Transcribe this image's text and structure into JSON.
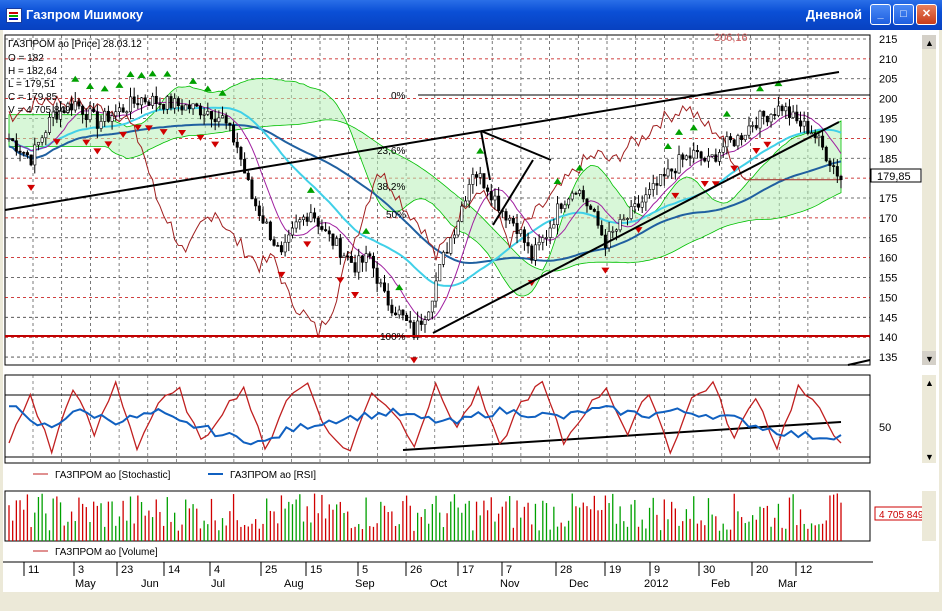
{
  "window": {
    "title": "Газпром Ишимоку",
    "mode": "Дневной",
    "buttons": {
      "minimize": "_",
      "maximize": "□",
      "close": "✕"
    }
  },
  "info": {
    "header": "ГАЗПРОМ ао [Price] 28.03.12",
    "open": "O = 182",
    "high": "H = 182,64",
    "low": "L = 179,51",
    "close": "C = 179,85",
    "volume": "V = 4 705 849"
  },
  "labels": {
    "top_value": "206,16",
    "last_price": "179,85",
    "fib_0": "0%",
    "fib_236": "23,6%",
    "fib_382": "38,2%",
    "fib_50": "50%",
    "fib_100": "100%",
    "osc_mid": "50",
    "vol_last": "4 705 849"
  },
  "legends": {
    "stochastic": "ГАЗПРОМ ао [Stochastic]",
    "rsi": "ГАЗПРОМ ао [RSI]",
    "volume": "ГАЗПРОМ ао [Volume]"
  },
  "chart_data": {
    "type": "line",
    "title": "ГАЗПРОМ ао [Price]",
    "period": "daily",
    "ylim": [
      133,
      216
    ],
    "y_ticks": [
      "215",
      "210",
      "205",
      "200",
      "195",
      "190",
      "185",
      "180",
      "175",
      "170",
      "165",
      "160",
      "155",
      "150",
      "145",
      "140",
      "135"
    ],
    "x_day_ticks": [
      "11",
      "3",
      "23",
      "14",
      "4",
      "25",
      "15",
      "5",
      "26",
      "17",
      "7",
      "28",
      "19",
      "9",
      "30",
      "20",
      "12"
    ],
    "x_month_ticks": [
      "May",
      "Jun",
      "Jul",
      "Aug",
      "Sep",
      "Oct",
      "Nov",
      "Dec",
      "2012",
      "Feb",
      "Mar"
    ],
    "close_path": [
      [
        0,
        190
      ],
      [
        6,
        185
      ],
      [
        12,
        196
      ],
      [
        18,
        199
      ],
      [
        24,
        194
      ],
      [
        30,
        197
      ],
      [
        36,
        200
      ],
      [
        42,
        199
      ],
      [
        48,
        198
      ],
      [
        54,
        197
      ],
      [
        58,
        195
      ],
      [
        62,
        188
      ],
      [
        66,
        175
      ],
      [
        70,
        168
      ],
      [
        74,
        160
      ],
      [
        78,
        168
      ],
      [
        82,
        172
      ],
      [
        86,
        166
      ],
      [
        90,
        162
      ],
      [
        94,
        158
      ],
      [
        98,
        160
      ],
      [
        102,
        150
      ],
      [
        106,
        146
      ],
      [
        110,
        141
      ],
      [
        114,
        148
      ],
      [
        118,
        160
      ],
      [
        122,
        170
      ],
      [
        126,
        182
      ],
      [
        130,
        178
      ],
      [
        134,
        172
      ],
      [
        138,
        168
      ],
      [
        142,
        160
      ],
      [
        146,
        166
      ],
      [
        150,
        174
      ],
      [
        154,
        178
      ],
      [
        158,
        172
      ],
      [
        162,
        164
      ],
      [
        166,
        168
      ],
      [
        170,
        172
      ],
      [
        174,
        176
      ],
      [
        178,
        180
      ],
      [
        182,
        184
      ],
      [
        186,
        186
      ],
      [
        190,
        184
      ],
      [
        194,
        188
      ],
      [
        198,
        190
      ],
      [
        202,
        194
      ],
      [
        206,
        196
      ],
      [
        210,
        198
      ],
      [
        214,
        194
      ],
      [
        218,
        192
      ],
      [
        222,
        186
      ],
      [
        226,
        180
      ]
    ],
    "fibonacci": [
      {
        "level": "0%",
        "value": 200
      },
      {
        "level": "23,6%",
        "value": 186
      },
      {
        "level": "38,2%",
        "value": 178
      },
      {
        "level": "50%",
        "value": 171
      },
      {
        "level": "100%",
        "value": 140
      }
    ],
    "last": {
      "date": "28.03.12",
      "open": 182,
      "high": 182.64,
      "low": 179.51,
      "close": 179.85,
      "volume": 4705849
    },
    "oscillators": {
      "stochastic": [
        20,
        80,
        10,
        90,
        30,
        95,
        15,
        70,
        85,
        20,
        60,
        90,
        10,
        75,
        95,
        30,
        10,
        85,
        60,
        20,
        90,
        40,
        85,
        15,
        70,
        95,
        20,
        60,
        90,
        30,
        85,
        10,
        75,
        95,
        25,
        80,
        15,
        90,
        60,
        20
      ],
      "rsi": [
        70,
        45,
        40,
        60,
        55,
        48,
        52,
        58,
        45,
        40,
        30,
        25,
        20,
        35,
        42,
        48,
        52,
        55,
        58,
        52,
        48,
        45,
        55,
        60,
        58,
        55,
        52,
        60,
        62,
        58,
        55,
        60,
        58,
        55,
        50,
        42,
        35,
        30,
        28,
        30
      ],
      "levels": [
        20,
        80
      ]
    }
  },
  "colors": {
    "up": "#00a000",
    "down": "#d00000",
    "grid": "#404040",
    "cloud": "#00c000",
    "cloud2": "#00c8c8",
    "ma_dark": "#2060a0",
    "ma_light": "#40d0e8",
    "purple": "#a020a0",
    "brown": "#a02020",
    "trend": "#000000",
    "rsi": "#1060c0",
    "stoch": "#c02020"
  }
}
